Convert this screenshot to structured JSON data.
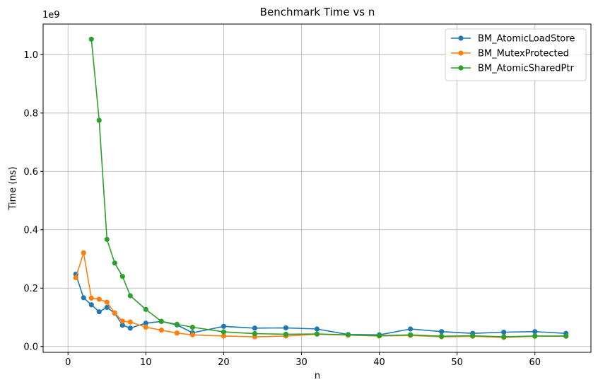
{
  "chart_data": {
    "type": "line",
    "title": "Benchmark Time vs n",
    "xlabel": "n",
    "ylabel": "Time (ns)",
    "y_offset_label": "1e9",
    "xlim": [
      -3.2,
      67.2
    ],
    "ylim": [
      -0.02,
      1.105
    ],
    "xticks": [
      0,
      10,
      20,
      30,
      40,
      50,
      60
    ],
    "xtick_labels": [
      "0",
      "10",
      "20",
      "30",
      "40",
      "50",
      "60"
    ],
    "yticks": [
      0.0,
      0.2,
      0.4,
      0.6,
      0.8,
      1.0
    ],
    "ytick_labels": [
      "0.0",
      "0.2",
      "0.4",
      "0.6",
      "0.8",
      "1.0"
    ],
    "grid": true,
    "legend_position": "top-right",
    "series": [
      {
        "name": "BM_AtomicLoadStore",
        "color": "#1f77b4",
        "x": [
          1,
          2,
          3,
          4,
          5,
          6,
          7,
          8,
          10,
          12,
          14,
          16,
          20,
          24,
          28,
          32,
          36,
          40,
          44,
          48,
          52,
          56,
          60,
          64
        ],
        "y": [
          0.248,
          0.167,
          0.143,
          0.119,
          0.134,
          0.114,
          0.073,
          0.063,
          0.08,
          0.086,
          0.074,
          0.047,
          0.069,
          0.063,
          0.064,
          0.06,
          0.041,
          0.04,
          0.06,
          0.051,
          0.045,
          0.049,
          0.051,
          0.045
        ]
      },
      {
        "name": "BM_MutexProtected",
        "color": "#ff7f0e",
        "x": [
          1,
          2,
          3,
          4,
          5,
          6,
          7,
          8,
          10,
          12,
          14,
          16,
          20,
          24,
          28,
          32,
          36,
          40,
          44,
          48,
          52,
          56,
          60,
          64
        ],
        "y": [
          0.236,
          0.321,
          0.166,
          0.162,
          0.152,
          0.115,
          0.087,
          0.084,
          0.066,
          0.056,
          0.046,
          0.04,
          0.036,
          0.033,
          0.036,
          0.042,
          0.039,
          0.036,
          0.038,
          0.033,
          0.035,
          0.031,
          0.035,
          0.035
        ]
      },
      {
        "name": "BM_AtomicSharedPtr",
        "color": "#2ca02c",
        "x": [
          3,
          4,
          5,
          6,
          7,
          8,
          10,
          12,
          14,
          16,
          20,
          24,
          28,
          32,
          36,
          40,
          44,
          48,
          52,
          56,
          60,
          64
        ],
        "y": [
          1.053,
          0.775,
          0.367,
          0.286,
          0.24,
          0.174,
          0.127,
          0.086,
          0.076,
          0.066,
          0.05,
          0.044,
          0.042,
          0.043,
          0.04,
          0.037,
          0.04,
          0.035,
          0.037,
          0.033,
          0.036,
          0.036
        ]
      }
    ]
  }
}
